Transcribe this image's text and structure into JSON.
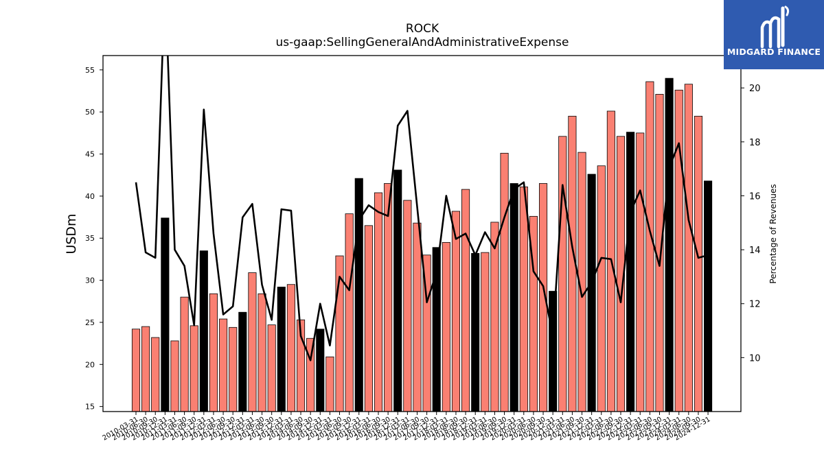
{
  "header": {
    "title": "ROCK",
    "subtitle": "us-gaap:SellingGeneralAndAdministrativeExpense"
  },
  "logo": {
    "text": "MIDGARD FINANCE",
    "icon": "midgard-logo-icon",
    "background": "#2f5bb0"
  },
  "chart_data": {
    "type": "bar",
    "ylabel": "USDm",
    "y2label": "Percentage of Revenues",
    "ylim": [
      14.4,
      56.7
    ],
    "y2lim": [
      8.0,
      21.2
    ],
    "yticks": [
      15,
      20,
      25,
      30,
      35,
      40,
      45,
      50,
      55
    ],
    "y2ticks": [
      10,
      12,
      14,
      16,
      18,
      20
    ],
    "colors": {
      "quarter": "#fa8072",
      "annual": "#000000",
      "line": "#000000"
    },
    "categories": [
      "2010-03-31",
      "2010-06-30",
      "2010-09-30",
      "2010-12-31",
      "2011-03-31",
      "2011-06-30",
      "2011-09-30",
      "2011-12-31",
      "2012-03-31",
      "2012-06-30",
      "2012-09-30",
      "2012-12-31",
      "2013-03-31",
      "2013-06-30",
      "2013-09-30",
      "2013-12-31",
      "2014-03-31",
      "2014-06-30",
      "2014-09-30",
      "2014-12-31",
      "2015-03-31",
      "2015-06-30",
      "2015-09-30",
      "2015-12-31",
      "2016-03-31",
      "2016-06-30",
      "2016-09-30",
      "2016-12-31",
      "2017-03-31",
      "2017-06-30",
      "2017-09-30",
      "2017-12-31",
      "2018-03-31",
      "2018-06-30",
      "2018-09-30",
      "2018-12-31",
      "2019-03-31",
      "2019-06-30",
      "2019-09-30",
      "2019-12-31",
      "2020-03-31",
      "2020-06-30",
      "2020-09-30",
      "2020-12-31",
      "2021-03-31",
      "2021-06-30",
      "2021-09-30",
      "2021-12-31",
      "2022-03-31",
      "2022-06-30",
      "2022-09-30",
      "2022-12-31",
      "2023-03-31",
      "2023-06-30",
      "2023-09-30",
      "2023-12-31",
      "2024-03-31",
      "2024-06-30",
      "2024-09-30",
      "2024-12-31"
    ],
    "series": [
      {
        "type": "bar",
        "values": [
          24.2,
          24.5,
          23.2,
          37.4,
          22.8,
          28.0,
          24.6,
          33.5,
          28.4,
          25.4,
          24.4,
          26.2,
          30.9,
          28.4,
          24.7,
          29.2,
          29.5,
          25.3,
          23.1,
          24.2,
          20.9,
          32.9,
          37.9,
          42.1,
          36.5,
          40.4,
          41.5,
          43.1,
          39.5,
          36.8,
          33.0,
          33.9,
          34.5,
          38.2,
          40.8,
          33.2,
          33.3,
          36.9,
          45.1,
          41.5,
          41.1,
          37.6,
          41.5,
          28.7,
          47.1,
          49.5,
          45.2,
          42.6,
          43.6,
          50.1,
          47.1,
          47.6,
          47.5,
          53.6,
          52.1,
          54.0,
          52.6,
          53.3,
          49.5,
          41.8
        ],
        "annual": [
          false,
          false,
          false,
          true,
          false,
          false,
          false,
          true,
          false,
          false,
          false,
          true,
          false,
          false,
          false,
          true,
          false,
          false,
          false,
          true,
          false,
          false,
          false,
          true,
          false,
          false,
          false,
          true,
          false,
          false,
          false,
          true,
          false,
          false,
          false,
          true,
          false,
          false,
          false,
          true,
          false,
          false,
          false,
          true,
          false,
          false,
          false,
          true,
          false,
          false,
          false,
          true,
          false,
          false,
          false,
          true,
          false,
          false,
          false,
          true
        ]
      },
      {
        "type": "line",
        "axis": "right",
        "values": [
          16.5,
          13.9,
          13.7,
          24.0,
          14.0,
          13.4,
          11.2,
          19.2,
          14.6,
          11.6,
          11.9,
          15.2,
          15.7,
          12.7,
          11.4,
          15.5,
          15.45,
          10.8,
          9.9,
          12.0,
          10.45,
          13.0,
          12.5,
          15.1,
          15.65,
          15.4,
          15.25,
          18.6,
          19.15,
          15.6,
          12.05,
          13.15,
          16.0,
          14.4,
          14.6,
          13.8,
          14.65,
          14.05,
          15.2,
          16.25,
          16.5,
          13.2,
          12.65,
          10.8,
          16.4,
          14.1,
          12.25,
          12.8,
          13.7,
          13.65,
          12.05,
          15.4,
          16.2,
          14.7,
          13.4,
          17.05,
          17.95,
          15.1,
          13.7,
          13.8
        ]
      }
    ],
    "grid": false,
    "legend": "none"
  }
}
